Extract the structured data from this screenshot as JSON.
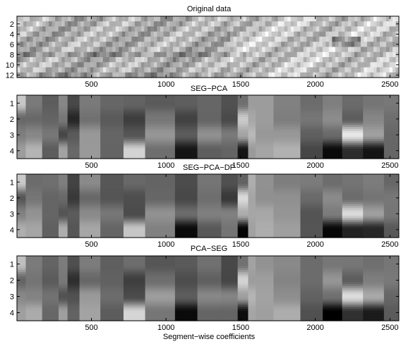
{
  "chart_data": [
    {
      "type": "heatmap",
      "title": "Original data",
      "xlim": [
        1,
        2560
      ],
      "ylim": [
        0.5,
        12.5
      ],
      "x_ticks": [
        500,
        1000,
        1500,
        2000,
        2500
      ],
      "y_ticks": [
        2,
        4,
        6,
        8,
        10,
        12
      ],
      "colormap": "gray",
      "rows": 12,
      "xlabel": ""
    },
    {
      "type": "heatmap",
      "title": "SEG−PCA",
      "xlim": [
        1,
        2560
      ],
      "ylim": [
        0.5,
        4.5
      ],
      "x_ticks": [
        500,
        1000,
        1500,
        2000,
        2500
      ],
      "y_ticks": [
        1,
        2,
        3,
        4
      ],
      "colormap": "gray",
      "rows": 4,
      "segment_boundaries": [
        60,
        170,
        280,
        340,
        420,
        560,
        715,
        860,
        1060,
        1210,
        1370,
        1480,
        1550,
        1600,
        1720,
        1900,
        2050,
        2180,
        2320,
        2460,
        2560
      ],
      "xlabel": ""
    },
    {
      "type": "heatmap",
      "title": "SEG−PCA−DP",
      "xlim": [
        1,
        2560
      ],
      "ylim": [
        0.5,
        4.5
      ],
      "x_ticks": [
        500,
        1000,
        1500,
        2000,
        2500
      ],
      "y_ticks": [
        1,
        2,
        3,
        4
      ],
      "colormap": "gray",
      "rows": 4,
      "segment_boundaries": [
        60,
        170,
        280,
        340,
        420,
        560,
        715,
        860,
        1060,
        1210,
        1370,
        1480,
        1550,
        1600,
        1720,
        1900,
        2050,
        2180,
        2320,
        2460,
        2560
      ],
      "xlabel": ""
    },
    {
      "type": "heatmap",
      "title": "PCA−SEG",
      "xlim": [
        1,
        2560
      ],
      "ylim": [
        0.5,
        4.5
      ],
      "x_ticks": [
        500,
        1000,
        1500,
        2000,
        2500
      ],
      "y_ticks": [
        1,
        2,
        3,
        4
      ],
      "colormap": "gray",
      "rows": 4,
      "segment_boundaries": [
        60,
        170,
        280,
        340,
        420,
        560,
        715,
        860,
        1060,
        1210,
        1370,
        1480,
        1550,
        1600,
        1720,
        1900,
        2050,
        2180,
        2320,
        2460,
        2560
      ],
      "xlabel": "Segment−wise coefficients"
    }
  ]
}
